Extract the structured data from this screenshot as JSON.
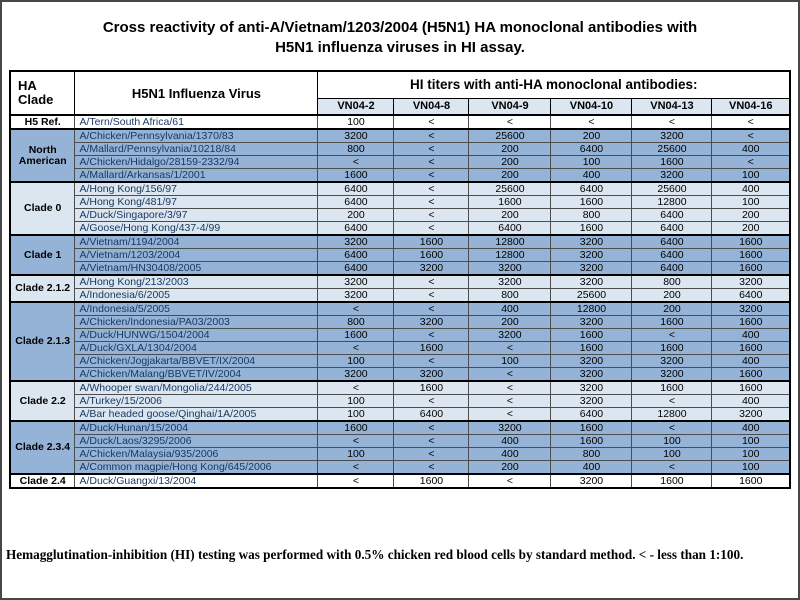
{
  "slide": {
    "title_lines": [
      "Cross reactivity of anti-A/Vietnam/1203/2004 (H5N1) HA monoclonal antibodies with",
      "H5N1 influenza viruses in HI assay."
    ],
    "footnote": "Hemagglutination-inhibition (HI) testing was performed with 0.5% chicken red blood cells by standard method. < - less than 1:100."
  },
  "colors": {
    "blue": "#95B3D7",
    "pale": "#DCE6F1",
    "white": "#FFFFFF",
    "header_band": "#DCE6F1",
    "virus_text": "#17375E"
  },
  "chart_data": {
    "type": "table",
    "header": {
      "clade_col_lines": [
        "HA",
        "Clade"
      ],
      "virus_col": "H5N1 Influenza Virus",
      "titer_group": "HI titers with anti-HA monoclonal antibodies:",
      "antibodies": [
        "VN04-2",
        "VN04-8",
        "VN04-9",
        "VN04-10",
        "VN04-13",
        "VN04-16"
      ]
    },
    "groups": [
      {
        "clade": "H5 Ref.",
        "shade": "white",
        "rows": [
          {
            "virus": "A/Tern/South Africa/61",
            "titers": [
              "100",
              "<",
              "<",
              "<",
              "<",
              "<"
            ]
          }
        ]
      },
      {
        "clade": "North American",
        "shade": "blue",
        "rows": [
          {
            "virus": "A/Chicken/Pennsylvania/1370/83",
            "titers": [
              "3200",
              "<",
              "25600",
              "200",
              "3200",
              "<"
            ]
          },
          {
            "virus": "A/Mallard/Pennsylvania/10218/84",
            "titers": [
              "800",
              "<",
              "200",
              "6400",
              "25600",
              "400"
            ]
          },
          {
            "virus": "A/Chicken/Hidalgo/28159-2332/94",
            "titers": [
              "<",
              "<",
              "200",
              "100",
              "1600",
              "<"
            ]
          },
          {
            "virus": "A/Mallard/Arkansas/1/2001",
            "titers": [
              "1600",
              "<",
              "200",
              "400",
              "3200",
              "100"
            ]
          }
        ]
      },
      {
        "clade": "Clade 0",
        "shade": "pale",
        "rows": [
          {
            "virus": "A/Hong Kong/156/97",
            "titers": [
              "6400",
              "<",
              "25600",
              "6400",
              "25600",
              "400"
            ]
          },
          {
            "virus": "A/Hong Kong/481/97",
            "titers": [
              "6400",
              "<",
              "1600",
              "1600",
              "12800",
              "100"
            ]
          },
          {
            "virus": "A/Duck/Singapore/3/97",
            "titers": [
              "200",
              "<",
              "200",
              "800",
              "6400",
              "200"
            ]
          },
          {
            "virus": "A/Goose/Hong Kong/437-4/99",
            "titers": [
              "6400",
              "<",
              "6400",
              "1600",
              "6400",
              "200"
            ]
          }
        ]
      },
      {
        "clade": "Clade 1",
        "shade": "blue",
        "rows": [
          {
            "virus": "A/Vietnam/1194/2004",
            "titers": [
              "3200",
              "1600",
              "12800",
              "3200",
              "6400",
              "1600"
            ]
          },
          {
            "virus": "A/Vietnam/1203/2004",
            "titers": [
              "6400",
              "1600",
              "12800",
              "3200",
              "6400",
              "1600"
            ]
          },
          {
            "virus": "A/Vietnam/HN30408/2005",
            "titers": [
              "6400",
              "3200",
              "3200",
              "3200",
              "6400",
              "1600"
            ]
          }
        ]
      },
      {
        "clade": "Clade 2.1.2",
        "shade": "pale",
        "rows": [
          {
            "virus": "A/Hong Kong/213/2003",
            "titers": [
              "3200",
              "<",
              "3200",
              "3200",
              "800",
              "3200"
            ]
          },
          {
            "virus": "A/Indonesia/6/2005",
            "titers": [
              "3200",
              "<",
              "800",
              "25600",
              "200",
              "6400"
            ]
          }
        ]
      },
      {
        "clade": "Clade 2.1.3",
        "shade": "blue",
        "rows": [
          {
            "virus": "A/Indonesia/5/2005",
            "titers": [
              "<",
              "<",
              "400",
              "12800",
              "200",
              "3200"
            ]
          },
          {
            "virus": "A/Chicken/Indonesia/PA03/2003",
            "titers": [
              "800",
              "3200",
              "200",
              "3200",
              "1600",
              "1600"
            ]
          },
          {
            "virus": "A/Duck/HUNWG/1504/2004",
            "titers": [
              "1600",
              "<",
              "3200",
              "1600",
              "<",
              "400"
            ]
          },
          {
            "virus": "A/Duck/GXLA/1304/2004",
            "titers": [
              "<",
              "1600",
              "<",
              "1600",
              "1600",
              "1600"
            ]
          },
          {
            "virus": "A/Chicken/Jogjakarta/BBVET/IX/2004",
            "titers": [
              "100",
              "<",
              "100",
              "3200",
              "3200",
              "400"
            ]
          },
          {
            "virus": "A/Chicken/Malang/BBVET/IV/2004",
            "titers": [
              "3200",
              "3200",
              "<",
              "3200",
              "3200",
              "1600"
            ]
          }
        ]
      },
      {
        "clade": "Clade 2.2",
        "shade": "pale",
        "rows": [
          {
            "virus": "A/Whooper swan/Mongolia/244/2005",
            "titers": [
              "<",
              "1600",
              "<",
              "3200",
              "1600",
              "1600"
            ]
          },
          {
            "virus": "A/Turkey/15/2006",
            "titers": [
              "100",
              "<",
              "<",
              "3200",
              "<",
              "400"
            ]
          },
          {
            "virus": "A/Bar headed goose/Qinghai/1A/2005",
            "titers": [
              "100",
              "6400",
              "<",
              "6400",
              "12800",
              "3200"
            ]
          }
        ]
      },
      {
        "clade": "Clade 2.3.4",
        "shade": "blue",
        "rows": [
          {
            "virus": "A/Duck/Hunan/15/2004",
            "titers": [
              "1600",
              "<",
              "3200",
              "1600",
              "<",
              "400"
            ]
          },
          {
            "virus": "A/Duck/Laos/3295/2006",
            "titers": [
              "<",
              "<",
              "400",
              "1600",
              "100",
              "100"
            ]
          },
          {
            "virus": "A/Chicken/Malaysia/935/2006",
            "titers": [
              "100",
              "<",
              "400",
              "800",
              "100",
              "100"
            ]
          },
          {
            "virus": "A/Common magpie/Hong Kong/645/2006",
            "titers": [
              "<",
              "<",
              "200",
              "400",
              "<",
              "100"
            ]
          }
        ]
      },
      {
        "clade": "Clade 2.4",
        "shade": "white",
        "rows": [
          {
            "virus": "A/Duck/Guangxi/13/2004",
            "titers": [
              "<",
              "1600",
              "<",
              "3200",
              "1600",
              "1600"
            ]
          }
        ]
      }
    ]
  }
}
